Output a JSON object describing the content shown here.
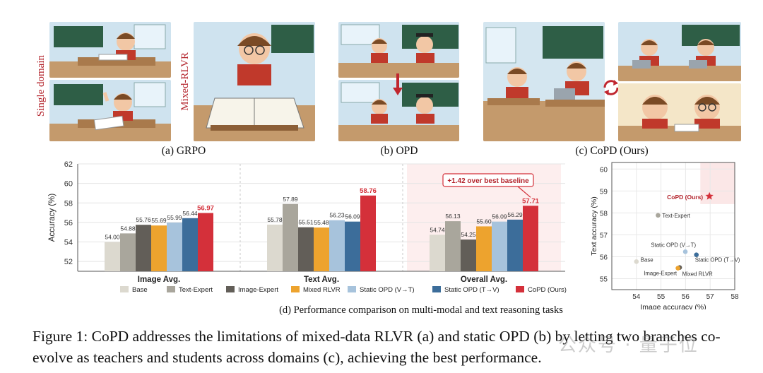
{
  "captions": {
    "a": "(a) GRPO",
    "b": "(b) OPD",
    "c": "(c) CoPD (Ours)",
    "d": "(d) Performance comparison on multi-modal and text reasoning tasks"
  },
  "side_labels": {
    "single_domain": "Single domain",
    "mixed_rlvr": "Mixed-RLVR"
  },
  "figure_caption": "Figure 1:  CoPD addresses the limitations of mixed-data RLVR (a) and static OPD (b) by letting two branches co-evolve as teachers and students across domains (c), achieving the best performance.",
  "watermark": "公众号 · 量子位",
  "colors": {
    "Base": "#dcd9cf",
    "Text-Expert": "#a9a69c",
    "Image-Expert": "#625e58",
    "Mixed RLVR": "#eda32e",
    "Static OPD (V→T)": "#a7c3dc",
    "Static OPD (T→V)": "#3c6d9a",
    "CoPD (Ours)": "#d4303a",
    "accent": "#b3232b"
  },
  "chart_data": [
    {
      "type": "bar",
      "ylabel": "Accuracy (%)",
      "ylim": [
        51,
        62
      ],
      "yticks": [
        52,
        54,
        56,
        58,
        60,
        62
      ],
      "categories": [
        "Image Avg.",
        "Text Avg.",
        "Overall Avg."
      ],
      "series": [
        {
          "name": "Base",
          "values": [
            54.0,
            55.78,
            54.74
          ]
        },
        {
          "name": "Text-Expert",
          "values": [
            54.88,
            57.89,
            56.13
          ]
        },
        {
          "name": "Image-Expert",
          "values": [
            55.76,
            55.51,
            54.25
          ]
        },
        {
          "name": "Mixed RLVR",
          "values": [
            55.69,
            55.48,
            55.6
          ]
        },
        {
          "name": "Static OPD (V→T)",
          "values": [
            55.99,
            56.23,
            56.09
          ]
        },
        {
          "name": "Static OPD (T→V)",
          "values": [
            56.44,
            56.09,
            56.29
          ]
        },
        {
          "name": "CoPD (Ours)",
          "values": [
            56.97,
            58.76,
            57.71
          ]
        }
      ],
      "labels": [
        [
          "54.00",
          "54.88",
          "55.76",
          "55.69",
          "55.99",
          "56.44",
          "56.97"
        ],
        [
          "55.78",
          "57.89",
          "55.51",
          "55.48",
          "56.23",
          "56.09",
          "58.76"
        ],
        [
          "54.74",
          "56.13",
          "54.25",
          "55.60",
          "56.09",
          "56.29",
          "57.71"
        ]
      ],
      "annotation": "+1.42 over best baseline",
      "legend_position": "bottom",
      "grid": true
    },
    {
      "type": "scatter",
      "xlabel": "Image accuracy (%)",
      "ylabel": "Text accuracy (%)",
      "xlim": [
        53,
        58
      ],
      "ylim": [
        54.5,
        60.3
      ],
      "xticks": [
        54,
        55,
        56,
        57,
        58
      ],
      "yticks": [
        55,
        56,
        57,
        58,
        59,
        60
      ],
      "points": [
        {
          "name": "Base",
          "x": 54.0,
          "y": 55.78
        },
        {
          "name": "Text-Expert",
          "x": 54.88,
          "y": 57.89
        },
        {
          "name": "Image-Expert",
          "x": 55.76,
          "y": 55.51
        },
        {
          "name": "Mixed RLVR",
          "x": 55.69,
          "y": 55.48
        },
        {
          "name": "Static OPD (V→T)",
          "x": 55.99,
          "y": 56.23
        },
        {
          "name": "Static OPD (T→V)",
          "x": 56.44,
          "y": 56.09
        },
        {
          "name": "CoPD (Ours)",
          "x": 56.97,
          "y": 58.76
        }
      ],
      "grid": true
    }
  ]
}
